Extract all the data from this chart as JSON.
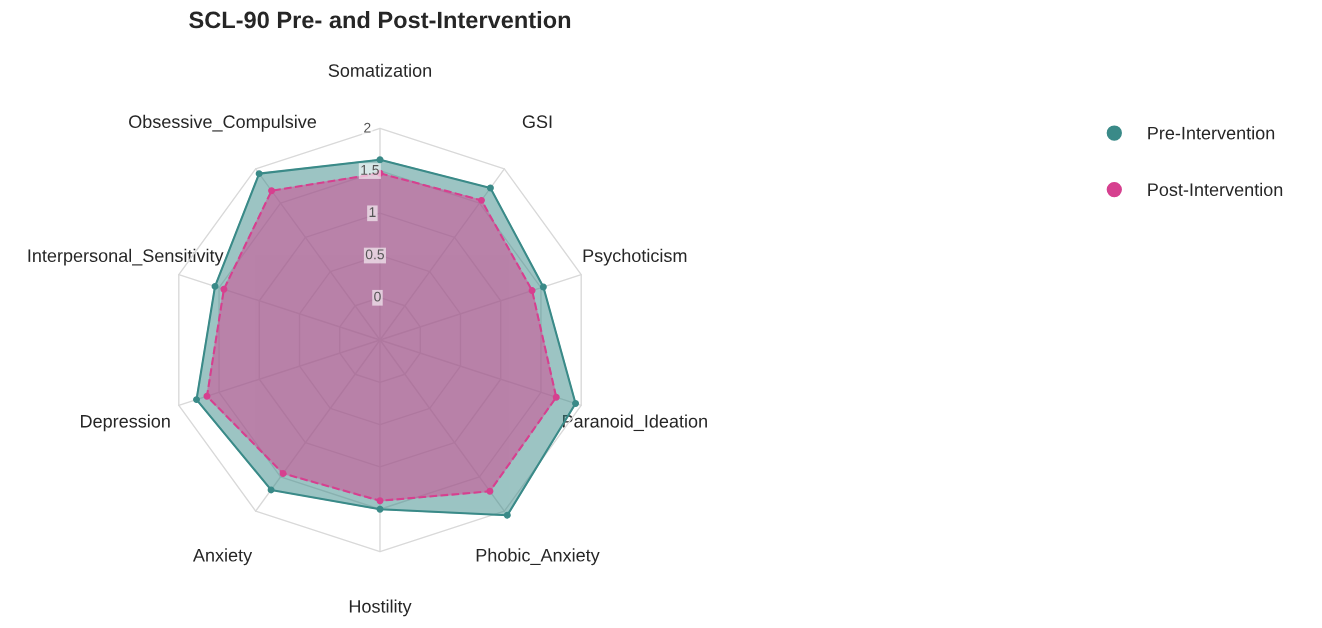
{
  "chart_data": {
    "type": "radar",
    "title": "SCL-90 Pre- and Post-Intervention",
    "categories": [
      "Somatization",
      "GSI",
      "Psychoticism",
      "Paranoid_Ideation",
      "Phobic_Anxiety",
      "Hostility",
      "Anxiety",
      "Depression",
      "Interpersonal_Sensitivity",
      "Obsessive_Compulsive"
    ],
    "series": [
      {
        "name": "Pre-Intervention",
        "color": "#3a8a88",
        "line_style": "solid",
        "values": [
          1.63,
          1.72,
          1.53,
          1.93,
          2.06,
          1.5,
          1.69,
          1.78,
          1.55,
          1.93
        ]
      },
      {
        "name": "Post-Intervention",
        "color": "#d6408f",
        "line_style": "dashed",
        "values": [
          1.47,
          1.54,
          1.39,
          1.69,
          1.71,
          1.4,
          1.45,
          1.65,
          1.44,
          1.68
        ]
      }
    ],
    "ylim": [
      -0.5,
      2.1
    ],
    "yticks": [
      0,
      0.5,
      1,
      1.5,
      2
    ],
    "grid": true,
    "marker": "circle",
    "legend": "top right"
  }
}
